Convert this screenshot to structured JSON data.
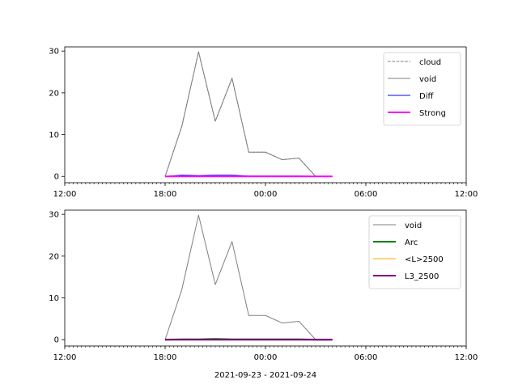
{
  "chart_data": [
    {
      "type": "line",
      "x_unit": "hours since 2021-09-23 12:00",
      "xlim": [
        "12:00",
        "12:00"
      ],
      "x_ticks": [
        "12:00",
        "18:00",
        "00:00",
        "06:00",
        "12:00"
      ],
      "ylim": [
        -1.5,
        31
      ],
      "y_ticks": [
        0,
        10,
        20,
        30
      ],
      "legend_position": "top-right",
      "series": [
        {
          "name": "cloud",
          "color": "#808080",
          "style": "dashed",
          "x": [
            "18:00",
            "19:00",
            "20:00",
            "21:00",
            "22:00",
            "23:00",
            "00:00",
            "01:00",
            "02:00",
            "03:00",
            "04:00"
          ],
          "values": [
            0,
            12,
            29.8,
            13.2,
            23.5,
            5.8,
            5.8,
            4,
            4.4,
            0,
            0
          ]
        },
        {
          "name": "void",
          "color": "#808080",
          "style": "solid",
          "x": [
            "18:00",
            "19:00",
            "20:00",
            "21:00",
            "22:00",
            "23:00",
            "00:00",
            "01:00",
            "02:00",
            "03:00",
            "04:00"
          ],
          "values": [
            0,
            12,
            29.8,
            13.2,
            23.5,
            5.8,
            5.8,
            4,
            4.4,
            0,
            0
          ]
        },
        {
          "name": "Diff",
          "color": "#0000ff",
          "style": "solid",
          "x": [
            "18:00",
            "19:00",
            "20:00",
            "21:00",
            "22:00",
            "23:00",
            "00:00",
            "01:00",
            "02:00",
            "03:00",
            "04:00"
          ],
          "values": [
            0,
            0.3,
            0.2,
            0.3,
            0.3,
            0.1,
            0.1,
            0.1,
            0.1,
            0,
            0
          ]
        },
        {
          "name": "Strong",
          "color": "#ff00ff",
          "style": "solid-thick",
          "x": [
            "18:00",
            "19:00",
            "20:00",
            "21:00",
            "22:00",
            "23:00",
            "00:00",
            "01:00",
            "02:00",
            "03:00",
            "04:00"
          ],
          "values": [
            0,
            0,
            0,
            0,
            0,
            0,
            0,
            0,
            0,
            0,
            0
          ]
        }
      ]
    },
    {
      "type": "line",
      "x_unit": "hours since 2021-09-23 12:00",
      "xlim": [
        "12:00",
        "12:00"
      ],
      "x_ticks": [
        "12:00",
        "18:00",
        "00:00",
        "06:00",
        "12:00"
      ],
      "ylim": [
        -1.5,
        31
      ],
      "y_ticks": [
        0,
        10,
        20,
        30
      ],
      "legend_position": "top-right",
      "xlabel": "2021-09-23 - 2021-09-24",
      "series": [
        {
          "name": "void",
          "color": "#808080",
          "style": "solid",
          "x": [
            "18:00",
            "19:00",
            "20:00",
            "21:00",
            "22:00",
            "23:00",
            "00:00",
            "01:00",
            "02:00",
            "03:00",
            "04:00"
          ],
          "values": [
            0,
            12,
            29.8,
            13.2,
            23.5,
            5.8,
            5.8,
            4,
            4.4,
            0,
            0
          ]
        },
        {
          "name": "Arc",
          "color": "#008000",
          "style": "solid-thick",
          "x": [
            "18:00",
            "19:00",
            "20:00",
            "21:00",
            "22:00",
            "23:00",
            "00:00",
            "01:00",
            "02:00",
            "03:00",
            "04:00"
          ],
          "values": [
            0,
            0.1,
            0.1,
            0.2,
            0.1,
            0.1,
            0.1,
            0.1,
            0.1,
            0,
            0
          ]
        },
        {
          "name": "<L>2500",
          "color": "#ffa500",
          "style": "solid",
          "x": [
            "18:00",
            "19:00",
            "20:00",
            "21:00",
            "22:00",
            "23:00",
            "00:00",
            "01:00",
            "02:00",
            "03:00",
            "04:00"
          ],
          "values": [
            0,
            0,
            0,
            0,
            0,
            0,
            0,
            0,
            0,
            0,
            0
          ]
        },
        {
          "name": "L3_2500",
          "color": "#800080",
          "style": "solid-thick",
          "x": [
            "18:00",
            "19:00",
            "20:00",
            "21:00",
            "22:00",
            "23:00",
            "00:00",
            "01:00",
            "02:00",
            "03:00",
            "04:00"
          ],
          "values": [
            0,
            0,
            0,
            0,
            0,
            0,
            0,
            0,
            0,
            0,
            0
          ]
        }
      ]
    }
  ]
}
